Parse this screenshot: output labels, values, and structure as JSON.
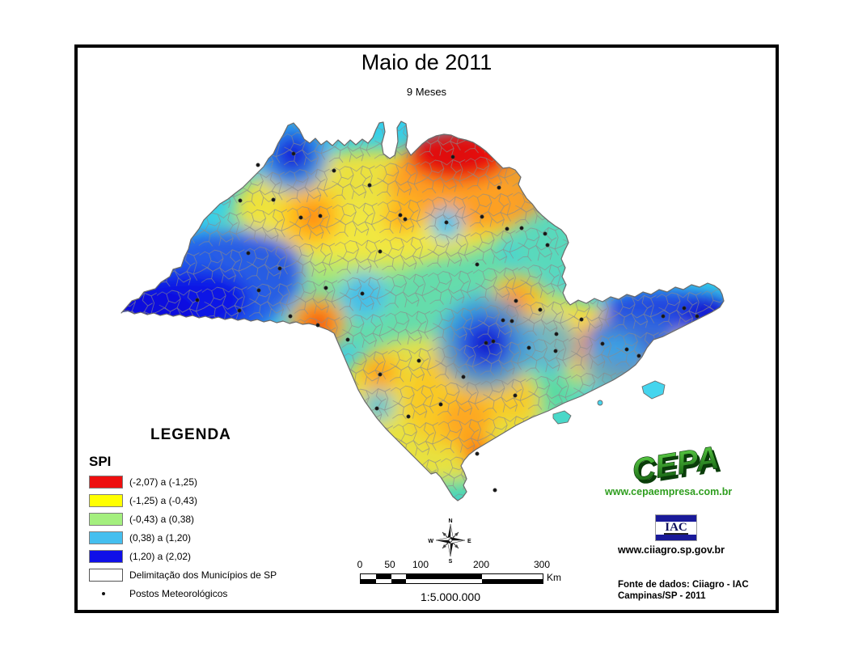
{
  "page": {
    "title": "Maio de 2011",
    "subtitle": "9 Meses"
  },
  "legend": {
    "heading": "LEGENDA",
    "group_label": "SPI",
    "classes": [
      {
        "color": "#ee0f0f",
        "label": "(-2,07) a (-1,25)"
      },
      {
        "color": "#ffff00",
        "label": "(-1,25) a (-0,43)"
      },
      {
        "color": "#a4ef7e",
        "label": "(-0,43) a (0,38)"
      },
      {
        "color": "#45bfef",
        "label": "(0,38) a (1,20)"
      },
      {
        "color": "#0f0fe8",
        "label": "(1,20) a (2,02)"
      }
    ],
    "outline_item": "Delimitação dos Municípios de SP",
    "points_item": "Postos Meteorológicos"
  },
  "scalebar": {
    "ticks": [
      "0",
      "50",
      "100",
      "200",
      "300"
    ],
    "unit": "Km",
    "ratio": "1:5.000.000"
  },
  "compass": {
    "n": "N",
    "s": "S",
    "e": "E",
    "w": "W"
  },
  "logos": {
    "cepa_text": "CEPA",
    "cepa_url": "www.cepaempresa.com.br",
    "cepa_color": "#2f9e1f",
    "iac_text": "IAC",
    "iac_url": "www.ciiagro.sp.gov.br",
    "iac_navy": "#1a1a99"
  },
  "source": {
    "line1": "Fonte de dados: Ciiagro - IAC",
    "line2": "Campinas/SP - 2011"
  },
  "map": {
    "stations": [
      [
        363,
        190
      ],
      [
        319,
        204
      ],
      [
        413,
        211
      ],
      [
        297,
        248
      ],
      [
        338,
        247
      ],
      [
        372,
        269
      ],
      [
        396,
        267
      ],
      [
        457,
        229
      ],
      [
        560,
        194
      ],
      [
        617,
        232
      ],
      [
        645,
        282
      ],
      [
        674,
        289
      ],
      [
        677,
        303
      ],
      [
        495,
        266
      ],
      [
        501,
        271
      ],
      [
        552,
        275
      ],
      [
        596,
        268
      ],
      [
        627,
        283
      ],
      [
        590,
        327
      ],
      [
        470,
        311
      ],
      [
        403,
        356
      ],
      [
        448,
        363
      ],
      [
        307,
        313
      ],
      [
        346,
        332
      ],
      [
        320,
        359
      ],
      [
        296,
        384
      ],
      [
        244,
        371
      ],
      [
        359,
        391
      ],
      [
        393,
        402
      ],
      [
        430,
        420
      ],
      [
        470,
        463
      ],
      [
        466,
        505
      ],
      [
        505,
        515
      ],
      [
        545,
        500
      ],
      [
        573,
        466
      ],
      [
        518,
        446
      ],
      [
        590,
        561
      ],
      [
        612,
        606
      ],
      [
        637,
        489
      ],
      [
        638,
        372
      ],
      [
        668,
        383
      ],
      [
        633,
        397
      ],
      [
        610,
        422
      ],
      [
        601,
        424
      ],
      [
        622,
        396
      ],
      [
        688,
        413
      ],
      [
        654,
        430
      ],
      [
        687,
        434
      ],
      [
        719,
        395
      ],
      [
        745,
        425
      ],
      [
        775,
        432
      ],
      [
        790,
        440
      ],
      [
        820,
        391
      ],
      [
        846,
        381
      ],
      [
        862,
        391
      ]
    ]
  }
}
